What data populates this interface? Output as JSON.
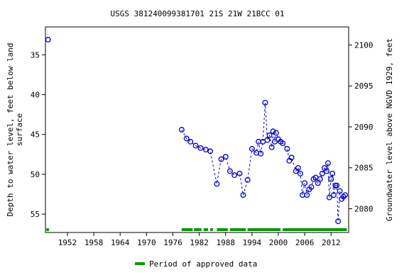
{
  "chart_data": {
    "type": "line",
    "title": "USGS 381240099381701 21S 21W 21BCC 01",
    "ylabel": "Depth to water level, feet below land\nsurface",
    "y2label": "Groundwater level above NGVD 1929, feet",
    "xlim": [
      1947,
      2016
    ],
    "xticks": [
      1952,
      1958,
      1964,
      1970,
      1976,
      1982,
      1988,
      1994,
      2000,
      2006,
      2012
    ],
    "ylim": [
      31.5,
      57.3
    ],
    "yticks": [
      35,
      40,
      45,
      50,
      55
    ],
    "y2lim": [
      2102.2,
      2077.1
    ],
    "y2ticks": [
      2080,
      2085,
      2090,
      2095,
      2100
    ],
    "series": [
      {
        "color": "#0000cc",
        "x": [
          1947.6,
          null,
          1978.0,
          1979.1,
          1980.0,
          1981.2,
          1982.3,
          1983.5,
          1984.5,
          1986.0,
          1987.0,
          1988.0,
          1989.0,
          1990.0,
          1991.2,
          1992.0,
          1993.0,
          1994.0,
          1995.0,
          1995.5,
          1996.0,
          1996.5,
          1997.0,
          1997.5,
          1998.0,
          1998.5,
          1998.8,
          1999.2,
          1999.5,
          2000.0,
          2000.5,
          2001.0,
          2002.0,
          2002.5,
          2003.0,
          2004.0,
          2004.5,
          2005.0,
          2005.5,
          2006.0,
          2006.5,
          2007.0,
          2007.5,
          2008.0,
          2008.5,
          2009.0,
          2009.5,
          2010.0,
          2010.5,
          2011.0,
          2011.3,
          2011.6,
          2012.0,
          2012.3,
          2012.6,
          2013.0,
          2013.3,
          2013.6,
          2014.0,
          2014.4,
          2014.8,
          2015.2
        ],
        "values": [
          33.1,
          null,
          44.4,
          45.5,
          45.9,
          46.4,
          46.7,
          46.9,
          47.1,
          51.2,
          48.1,
          47.8,
          49.6,
          50.1,
          49.9,
          52.6,
          50.7,
          46.8,
          47.3,
          45.9,
          47.4,
          45.9,
          41.0,
          45.7,
          45.1,
          46.6,
          44.6,
          45.9,
          44.8,
          45.6,
          45.9,
          46.1,
          46.8,
          48.3,
          47.9,
          49.6,
          49.2,
          49.9,
          52.6,
          51.1,
          52.6,
          51.9,
          51.6,
          50.6,
          50.4,
          51.1,
          50.6,
          49.9,
          49.2,
          49.6,
          48.6,
          52.9,
          50.6,
          49.9,
          52.6,
          51.4,
          51.4,
          55.9,
          52.1,
          53.1,
          52.8,
          52.6
        ]
      }
    ],
    "approved_periods": {
      "name": "Period of approved data",
      "color": "#009900",
      "ranges": [
        [
          1947.2,
          1947.8
        ],
        [
          1978.0,
          1980.5
        ],
        [
          1980.8,
          1982.5
        ],
        [
          1983.0,
          1984.0
        ],
        [
          1984.5,
          1985.1
        ],
        [
          1986.0,
          1988.5
        ],
        [
          1989.0,
          1992.6
        ],
        [
          1993.0,
          2000.5
        ],
        [
          2001.0,
          2015.6
        ]
      ]
    }
  }
}
